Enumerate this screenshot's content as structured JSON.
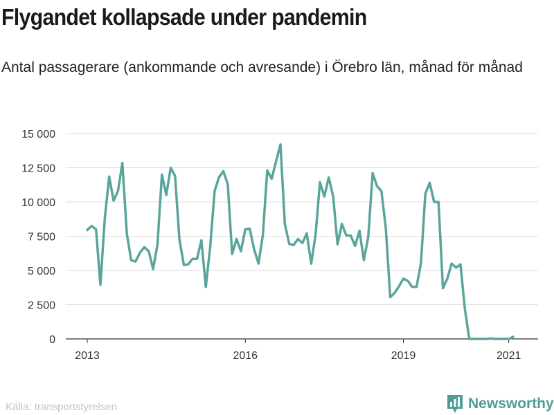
{
  "title": "Flygandet kollapsade under pandemin",
  "subtitle": "Antal passagerare (ankommande och avresande) i Örebro län, månad för månad",
  "source": "Källa: transportstyrelsen",
  "brand": {
    "name": "Newsworthy",
    "icon": "newsworthy-logo-icon",
    "color": "#4f9e94"
  },
  "colors": {
    "line": "#5aa59b",
    "grid": "#dddddd",
    "axis": "#333333"
  },
  "chart_data": {
    "type": "line",
    "title": "Flygandet kollapsade under pandemin",
    "xlabel": "",
    "ylabel": "",
    "ylim": [
      0,
      15000
    ],
    "yticks": [
      0,
      2500,
      5000,
      7500,
      10000,
      12500,
      15000
    ],
    "ytick_labels": [
      "0",
      "2 500",
      "5 000",
      "7 500",
      "10 000",
      "12 500",
      "15 000"
    ],
    "xticks": [
      "2013",
      "2016",
      "2019",
      "2021"
    ],
    "grid": true,
    "legend": "none",
    "x": [
      "2013-01",
      "2013-02",
      "2013-03",
      "2013-04",
      "2013-05",
      "2013-06",
      "2013-07",
      "2013-08",
      "2013-09",
      "2013-10",
      "2013-11",
      "2013-12",
      "2014-01",
      "2014-02",
      "2014-03",
      "2014-04",
      "2014-05",
      "2014-06",
      "2014-07",
      "2014-08",
      "2014-09",
      "2014-10",
      "2014-11",
      "2014-12",
      "2015-01",
      "2015-02",
      "2015-03",
      "2015-04",
      "2015-05",
      "2015-06",
      "2015-07",
      "2015-08",
      "2015-09",
      "2015-10",
      "2015-11",
      "2015-12",
      "2016-01",
      "2016-02",
      "2016-03",
      "2016-04",
      "2016-05",
      "2016-06",
      "2016-07",
      "2016-08",
      "2016-09",
      "2016-10",
      "2016-11",
      "2016-12",
      "2017-01",
      "2017-02",
      "2017-03",
      "2017-04",
      "2017-05",
      "2017-06",
      "2017-07",
      "2017-08",
      "2017-09",
      "2017-10",
      "2017-11",
      "2017-12",
      "2018-01",
      "2018-02",
      "2018-03",
      "2018-04",
      "2018-05",
      "2018-06",
      "2018-07",
      "2018-08",
      "2018-09",
      "2018-10",
      "2018-11",
      "2018-12",
      "2019-01",
      "2019-02",
      "2019-03",
      "2019-04",
      "2019-05",
      "2019-06",
      "2019-07",
      "2019-08",
      "2019-09",
      "2019-10",
      "2019-11",
      "2019-12",
      "2020-01",
      "2020-02",
      "2020-03",
      "2020-04",
      "2020-05",
      "2020-06",
      "2020-07",
      "2020-08",
      "2020-09",
      "2020-10",
      "2020-11",
      "2020-12",
      "2021-01",
      "2021-02"
    ],
    "series": [
      {
        "values": [
          7950,
          8250,
          8000,
          3950,
          8850,
          11850,
          10100,
          10800,
          12850,
          7700,
          5750,
          5650,
          6300,
          6700,
          6400,
          5100,
          6900,
          12000,
          10500,
          12500,
          11900,
          7250,
          5400,
          5450,
          5850,
          5850,
          7200,
          3800,
          6700,
          10800,
          11800,
          12250,
          11300,
          6200,
          7300,
          6400,
          8000,
          8050,
          6550,
          5500,
          7600,
          12300,
          11700,
          12950,
          14200,
          8400,
          6950,
          6850,
          7300,
          7000,
          7700,
          5500,
          7600,
          11450,
          10400,
          11800,
          10400,
          6900,
          8400,
          7550,
          7550,
          6800,
          7900,
          5750,
          7450,
          12100,
          11150,
          10800,
          8100,
          3050,
          3350,
          3850,
          4400,
          4250,
          3800,
          3800,
          5550,
          10600,
          11400,
          10000,
          10000,
          3700,
          4400,
          5500,
          5200,
          5450,
          2200,
          0,
          0,
          0,
          0,
          0,
          30,
          0,
          0,
          0,
          0,
          150
        ]
      }
    ]
  }
}
